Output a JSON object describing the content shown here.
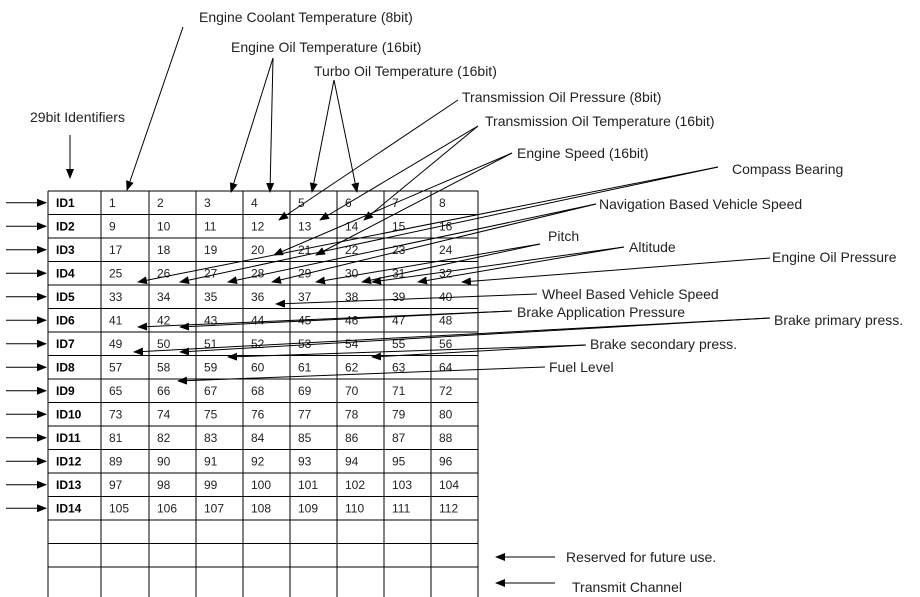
{
  "column_header_label": "29bit Identifiers",
  "rows": [
    {
      "id": "ID1",
      "cells": [
        "1",
        "2",
        "3",
        "4",
        "5",
        "6",
        "7",
        "8"
      ]
    },
    {
      "id": "ID2",
      "cells": [
        "9",
        "10",
        "11",
        "12",
        "13",
        "14",
        "15",
        "16"
      ]
    },
    {
      "id": "ID3",
      "cells": [
        "17",
        "18",
        "19",
        "20",
        "21",
        "22",
        "23",
        "24"
      ]
    },
    {
      "id": "ID4",
      "cells": [
        "25",
        "26",
        "27",
        "28",
        "29",
        "30",
        "31",
        "32"
      ]
    },
    {
      "id": "ID5",
      "cells": [
        "33",
        "34",
        "35",
        "36",
        "37",
        "38",
        "39",
        "40"
      ]
    },
    {
      "id": "ID6",
      "cells": [
        "41",
        "42",
        "43",
        "44",
        "45",
        "46",
        "47",
        "48"
      ]
    },
    {
      "id": "ID7",
      "cells": [
        "49",
        "50",
        "51",
        "52",
        "53",
        "54",
        "55",
        "56"
      ]
    },
    {
      "id": "ID8",
      "cells": [
        "57",
        "58",
        "59",
        "60",
        "61",
        "62",
        "63",
        "64"
      ]
    },
    {
      "id": "ID9",
      "cells": [
        "65",
        "66",
        "67",
        "68",
        "69",
        "70",
        "71",
        "72"
      ]
    },
    {
      "id": "ID10",
      "cells": [
        "73",
        "74",
        "75",
        "76",
        "77",
        "78",
        "79",
        "80"
      ]
    },
    {
      "id": "ID11",
      "cells": [
        "81",
        "82",
        "83",
        "84",
        "85",
        "86",
        "87",
        "88"
      ]
    },
    {
      "id": "ID12",
      "cells": [
        "89",
        "90",
        "91",
        "92",
        "93",
        "94",
        "95",
        "96"
      ]
    },
    {
      "id": "ID13",
      "cells": [
        "97",
        "98",
        "99",
        "100",
        "101",
        "102",
        "103",
        "104"
      ]
    },
    {
      "id": "ID14",
      "cells": [
        "105",
        "106",
        "107",
        "108",
        "109",
        "110",
        "111",
        "112"
      ]
    }
  ],
  "parameters": {
    "engine_coolant_temperature": "Engine Coolant Temperature (8bit)",
    "engine_oil_temperature": "Engine Oil Temperature (16bit)",
    "turbo_oil_temperature": "Turbo Oil Temperature (16bit)",
    "transmission_oil_pressure": "Transmission Oil Pressure (8bit)",
    "transmission_oil_temperature": "Transmission Oil Temperature (16bit)",
    "engine_speed": "Engine Speed (16bit)",
    "compass_bearing": "Compass Bearing",
    "navigation_vehicle_speed": "Navigation Based Vehicle Speed",
    "pitch": "Pitch",
    "altitude": "Altitude",
    "engine_oil_pressure": "Engine Oil Pressure",
    "wheel_vehicle_speed": "Wheel Based Vehicle Speed",
    "brake_application_pressure": "Brake Application Pressure",
    "brake_primary_press": "Brake primary press.",
    "brake_secondary_press": "Brake secondary press.",
    "fuel_level": "Fuel Level"
  },
  "extra_rows": {
    "reserved": "Reserved for future use.",
    "transmit_channel": "Transmit Channel"
  }
}
